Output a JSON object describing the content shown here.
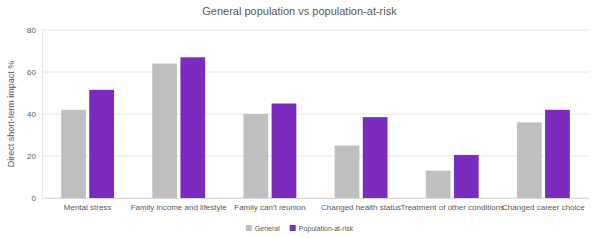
{
  "chart_data": {
    "type": "bar",
    "title": "General population vs population-at-risk",
    "y_label": "Direct short-term impact %",
    "categories": [
      "Mental stress",
      "Family income and lifestyle",
      "Family can't reunion",
      "Changed health status",
      "Treatment of other conditions",
      "Changed career choice"
    ],
    "series": [
      {
        "name": "General",
        "color": "#bfbfbf",
        "values": [
          42,
          64,
          40,
          25,
          13,
          36
        ]
      },
      {
        "name": "Population-at-risk",
        "color": "#7b2bbd",
        "values": [
          51.5,
          67,
          45,
          38.5,
          20.5,
          42
        ]
      }
    ],
    "ylim": [
      0,
      80
    ],
    "yticks": [
      0,
      20,
      40,
      60,
      80
    ],
    "grid": true,
    "legend": "bottom"
  }
}
